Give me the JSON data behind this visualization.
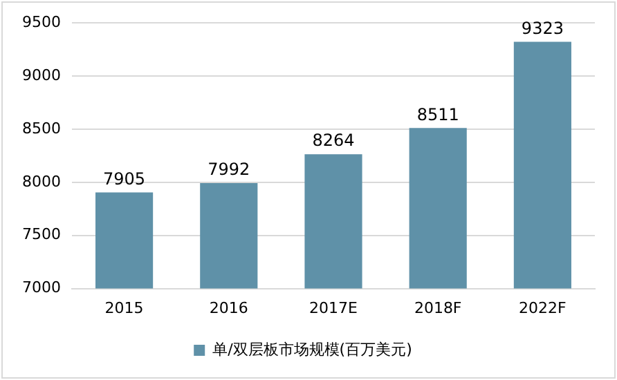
{
  "chart_data": {
    "type": "bar",
    "categories": [
      "2015",
      "2016",
      "2017E",
      "2018F",
      "2022F"
    ],
    "series": [
      {
        "name": "单/双层板市场规模(百万美元)",
        "color": "#5f91a8",
        "values": [
          7905,
          7992,
          8264,
          8511,
          9323
        ]
      }
    ],
    "ylim": [
      7000,
      9500
    ],
    "yticks": [
      7000,
      7500,
      8000,
      8500,
      9000,
      9500
    ],
    "grid": "y",
    "legend": "bottom",
    "data_labels": true
  }
}
